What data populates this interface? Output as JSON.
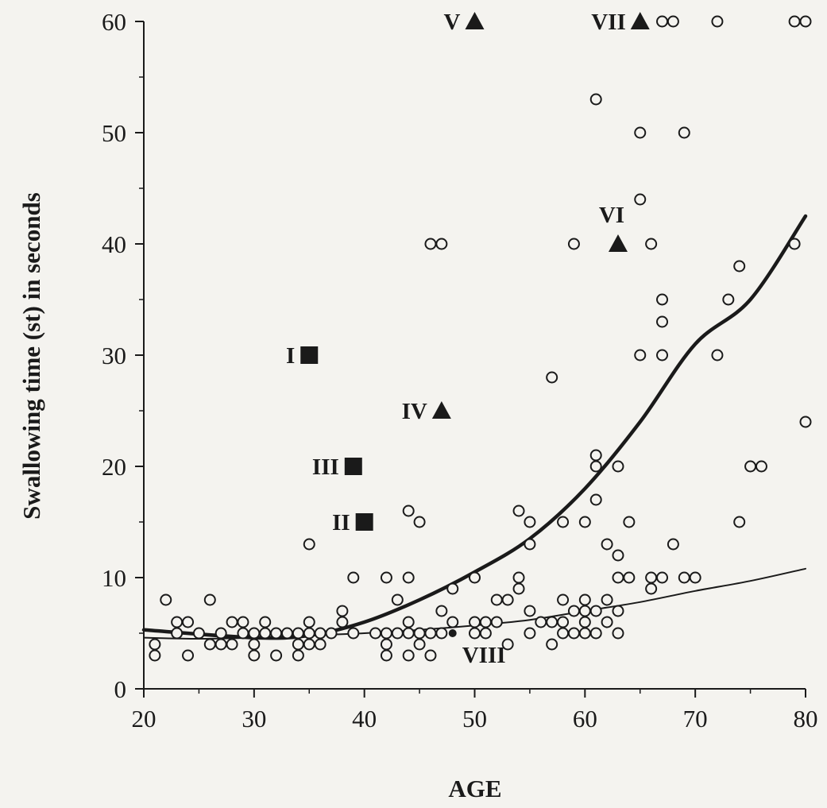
{
  "chart_data": {
    "type": "scatter",
    "xlabel": "AGE",
    "ylabel": "Swallowing time (st) in seconds",
    "xlim": [
      20,
      80
    ],
    "ylim": [
      0,
      60
    ],
    "xticks": [
      "20",
      "30",
      "40",
      "50",
      "60",
      "70",
      "80"
    ],
    "yticks": [
      "0",
      "10",
      "20",
      "30",
      "40",
      "50",
      "60"
    ],
    "grid": false,
    "series": [
      {
        "marker": "open-circle",
        "points": [
          [
            21,
            3
          ],
          [
            21,
            4
          ],
          [
            22,
            8
          ],
          [
            23,
            6
          ],
          [
            23,
            5
          ],
          [
            24,
            6
          ],
          [
            24,
            3
          ],
          [
            25,
            5
          ],
          [
            26,
            8
          ],
          [
            26,
            4
          ],
          [
            27,
            4
          ],
          [
            27,
            5
          ],
          [
            28,
            6
          ],
          [
            28,
            4
          ],
          [
            29,
            6
          ],
          [
            29,
            5
          ],
          [
            30,
            5
          ],
          [
            30,
            3
          ],
          [
            30,
            4
          ],
          [
            31,
            6
          ],
          [
            31,
            5
          ],
          [
            32,
            5
          ],
          [
            32,
            3
          ],
          [
            33,
            5
          ],
          [
            34,
            5
          ],
          [
            34,
            4
          ],
          [
            34,
            3
          ],
          [
            35,
            13
          ],
          [
            35,
            6
          ],
          [
            35,
            5
          ],
          [
            35,
            4
          ],
          [
            36,
            5
          ],
          [
            36,
            4
          ],
          [
            37,
            5
          ],
          [
            38,
            7
          ],
          [
            38,
            6
          ],
          [
            39,
            10
          ],
          [
            39,
            5
          ],
          [
            41,
            5
          ],
          [
            42,
            10
          ],
          [
            42,
            5
          ],
          [
            42,
            4
          ],
          [
            42,
            3
          ],
          [
            43,
            8
          ],
          [
            43,
            5
          ],
          [
            44,
            16
          ],
          [
            44,
            10
          ],
          [
            44,
            6
          ],
          [
            44,
            5
          ],
          [
            44,
            3
          ],
          [
            45,
            15
          ],
          [
            45,
            5
          ],
          [
            45,
            4
          ],
          [
            46,
            40
          ],
          [
            46,
            5
          ],
          [
            46,
            3
          ],
          [
            47,
            40
          ],
          [
            47,
            7
          ],
          [
            47,
            5
          ],
          [
            48,
            6
          ],
          [
            48,
            9
          ],
          [
            50,
            10
          ],
          [
            50,
            6
          ],
          [
            50,
            5
          ],
          [
            51,
            6
          ],
          [
            51,
            5
          ],
          [
            52,
            8
          ],
          [
            52,
            6
          ],
          [
            53,
            8
          ],
          [
            53,
            4
          ],
          [
            54,
            16
          ],
          [
            54,
            10
          ],
          [
            54,
            9
          ],
          [
            55,
            15
          ],
          [
            55,
            13
          ],
          [
            55,
            7
          ],
          [
            55,
            5
          ],
          [
            56,
            6
          ],
          [
            57,
            28
          ],
          [
            57,
            6
          ],
          [
            57,
            4
          ],
          [
            58,
            15
          ],
          [
            58,
            8
          ],
          [
            58,
            6
          ],
          [
            58,
            5
          ],
          [
            59,
            40
          ],
          [
            59,
            7
          ],
          [
            59,
            5
          ],
          [
            60,
            15
          ],
          [
            60,
            8
          ],
          [
            60,
            7
          ],
          [
            60,
            6
          ],
          [
            60,
            5
          ],
          [
            61,
            21
          ],
          [
            61,
            20
          ],
          [
            61,
            17
          ],
          [
            61,
            7
          ],
          [
            61,
            5
          ],
          [
            61,
            53
          ],
          [
            62,
            13
          ],
          [
            62,
            8
          ],
          [
            62,
            6
          ],
          [
            63,
            20
          ],
          [
            63,
            12
          ],
          [
            63,
            10
          ],
          [
            63,
            7
          ],
          [
            63,
            5
          ],
          [
            64,
            15
          ],
          [
            64,
            10
          ],
          [
            65,
            50
          ],
          [
            65,
            44
          ],
          [
            65,
            30
          ],
          [
            66,
            40
          ],
          [
            66,
            10
          ],
          [
            66,
            9
          ],
          [
            67,
            35
          ],
          [
            67,
            33
          ],
          [
            67,
            30
          ],
          [
            67,
            10
          ],
          [
            67,
            60
          ],
          [
            68,
            60
          ],
          [
            68,
            13
          ],
          [
            69,
            50
          ],
          [
            69,
            10
          ],
          [
            70,
            10
          ],
          [
            72,
            60
          ],
          [
            72,
            30
          ],
          [
            73,
            35
          ],
          [
            74,
            38
          ],
          [
            74,
            15
          ],
          [
            75,
            20
          ],
          [
            76,
            20
          ],
          [
            79,
            60
          ],
          [
            79,
            40
          ],
          [
            80,
            60
          ],
          [
            80,
            24
          ]
        ]
      },
      {
        "marker": "filled-square",
        "points": [
          {
            "label": "I",
            "x": 35,
            "y": 30
          },
          {
            "label": "III",
            "x": 39,
            "y": 20
          },
          {
            "label": "II",
            "x": 40,
            "y": 15
          }
        ]
      },
      {
        "marker": "filled-triangle",
        "points": [
          {
            "label": "IV",
            "x": 47,
            "y": 25
          },
          {
            "label": "V",
            "x": 50,
            "y": 60
          },
          {
            "label": "VI",
            "x": 63,
            "y": 40
          },
          {
            "label": "VII",
            "x": 65,
            "y": 60
          }
        ]
      },
      {
        "marker": "filled-dot",
        "points": [
          {
            "label": "VIII",
            "x": 48,
            "y": 5
          }
        ]
      }
    ],
    "curves": [
      {
        "style": "thick",
        "points": [
          [
            20,
            5.3
          ],
          [
            30,
            4.6
          ],
          [
            35,
            4.8
          ],
          [
            40,
            6.0
          ],
          [
            45,
            8.0
          ],
          [
            50,
            10.5
          ],
          [
            55,
            13.5
          ],
          [
            60,
            18.0
          ],
          [
            65,
            24.0
          ],
          [
            70,
            31.0
          ],
          [
            75,
            35.0
          ],
          [
            80,
            42.5
          ]
        ]
      },
      {
        "style": "thin",
        "points": [
          [
            20,
            4.6
          ],
          [
            25,
            4.5
          ],
          [
            30,
            4.6
          ],
          [
            35,
            4.8
          ],
          [
            40,
            5.0
          ],
          [
            45,
            5.3
          ],
          [
            50,
            5.7
          ],
          [
            55,
            6.2
          ],
          [
            60,
            7.0
          ],
          [
            65,
            7.8
          ],
          [
            70,
            8.8
          ],
          [
            75,
            9.7
          ],
          [
            80,
            10.8
          ]
        ]
      }
    ]
  }
}
